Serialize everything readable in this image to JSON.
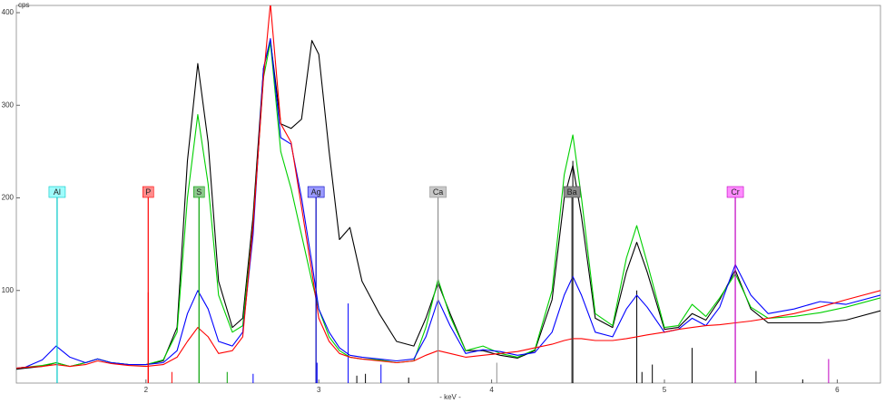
{
  "chart_data": {
    "type": "line",
    "y_label": "cps",
    "x_label": "- keV -",
    "xlim": [
      1.25,
      6.25
    ],
    "ylim": [
      0,
      400
    ],
    "xticks": [
      2,
      3,
      4,
      5,
      6
    ],
    "yticks": [
      100,
      200,
      300,
      400
    ],
    "x": [
      1.25,
      1.3,
      1.4,
      1.48,
      1.56,
      1.65,
      1.72,
      1.8,
      1.9,
      2.0,
      2.1,
      2.18,
      2.24,
      2.3,
      2.36,
      2.42,
      2.5,
      2.56,
      2.62,
      2.68,
      2.72,
      2.78,
      2.84,
      2.9,
      2.96,
      3.0,
      3.06,
      3.12,
      3.18,
      3.25,
      3.35,
      3.45,
      3.55,
      3.62,
      3.69,
      3.76,
      3.85,
      3.95,
      4.05,
      4.15,
      4.25,
      4.35,
      4.42,
      4.47,
      4.52,
      4.6,
      4.7,
      4.78,
      4.84,
      4.9,
      5.0,
      5.08,
      5.16,
      5.24,
      5.32,
      5.41,
      5.5,
      5.6,
      5.75,
      5.9,
      6.05,
      6.25
    ],
    "series": [
      {
        "color": "#000000",
        "values": [
          15,
          16,
          18,
          22,
          18,
          22,
          26,
          22,
          20,
          20,
          24,
          60,
          240,
          345,
          260,
          110,
          60,
          70,
          180,
          340,
          370,
          280,
          275,
          285,
          370,
          355,
          250,
          155,
          168,
          110,
          75,
          45,
          40,
          70,
          108,
          75,
          35,
          35,
          30,
          27,
          35,
          90,
          200,
          235,
          180,
          70,
          60,
          120,
          152,
          120,
          58,
          60,
          75,
          68,
          90,
          122,
          80,
          65,
          65,
          65,
          68,
          78
        ]
      },
      {
        "color": "#00d000",
        "values": [
          16,
          17,
          19,
          22,
          18,
          22,
          26,
          22,
          20,
          20,
          25,
          55,
          200,
          290,
          215,
          95,
          55,
          62,
          170,
          330,
          368,
          250,
          210,
          160,
          110,
          80,
          50,
          35,
          28,
          26,
          25,
          22,
          24,
          60,
          112,
          72,
          35,
          40,
          32,
          28,
          36,
          100,
          225,
          268,
          200,
          75,
          62,
          135,
          170,
          130,
          60,
          62,
          85,
          72,
          92,
          118,
          82,
          70,
          72,
          76,
          82,
          92
        ]
      },
      {
        "color": "#0000ff",
        "values": [
          16,
          17,
          25,
          40,
          28,
          22,
          26,
          22,
          20,
          20,
          22,
          35,
          75,
          100,
          80,
          45,
          40,
          55,
          160,
          340,
          372,
          265,
          258,
          200,
          130,
          80,
          55,
          38,
          30,
          28,
          26,
          24,
          26,
          50,
          90,
          62,
          32,
          36,
          34,
          30,
          33,
          55,
          95,
          115,
          95,
          55,
          50,
          80,
          95,
          82,
          55,
          58,
          70,
          62,
          82,
          128,
          95,
          75,
          80,
          88,
          85,
          95
        ]
      },
      {
        "color": "#ff0000",
        "values": [
          16,
          17,
          18,
          20,
          18,
          20,
          24,
          21,
          19,
          18,
          20,
          28,
          45,
          60,
          50,
          32,
          35,
          50,
          170,
          330,
          410,
          280,
          260,
          190,
          120,
          70,
          45,
          32,
          28,
          26,
          24,
          22,
          24,
          30,
          35,
          32,
          28,
          30,
          32,
          34,
          38,
          42,
          46,
          48,
          48,
          46,
          46,
          48,
          50,
          52,
          55,
          58,
          60,
          62,
          63,
          65,
          67,
          70,
          75,
          82,
          90,
          100
        ]
      }
    ],
    "element_lines": [
      {
        "label": "Al",
        "x": 1.486,
        "color": "#00c8c8",
        "box": "#9ffcfc"
      },
      {
        "label": "P",
        "x": 2.013,
        "color": "#ff0000",
        "box": "#ff8c8c"
      },
      {
        "label": "S",
        "x": 2.307,
        "color": "#00a000",
        "box": "#8cc88c"
      },
      {
        "label": "Ag",
        "x": 2.984,
        "color": "#0000c0",
        "box": "#9a9aff"
      },
      {
        "label": "Ca",
        "x": 3.69,
        "color": "#909090",
        "box": "#c8c8c8"
      },
      {
        "label": "Ba",
        "x": 4.465,
        "color": "#404040",
        "box": "#8c8c8c"
      },
      {
        "label": "Cr",
        "x": 5.41,
        "color": "#c000c0",
        "box": "#ff8cff"
      }
    ],
    "sticks": [
      {
        "x": 2.013,
        "height": 98,
        "color": "#ff0000"
      },
      {
        "x": 2.15,
        "height": 12,
        "color": "#ff0000"
      },
      {
        "x": 2.47,
        "height": 12,
        "color": "#00a000"
      },
      {
        "x": 2.62,
        "height": 10,
        "color": "#0000ff"
      },
      {
        "x": 2.99,
        "height": 22,
        "color": "#0000ff"
      },
      {
        "x": 3.17,
        "height": 86,
        "color": "#0000ff"
      },
      {
        "x": 3.22,
        "height": 8,
        "color": "#000000"
      },
      {
        "x": 3.27,
        "height": 10,
        "color": "#000000"
      },
      {
        "x": 3.36,
        "height": 20,
        "color": "#0000ff"
      },
      {
        "x": 3.52,
        "height": 6,
        "color": "#000000"
      },
      {
        "x": 4.03,
        "height": 22,
        "color": "#909090"
      },
      {
        "x": 4.47,
        "height": 240,
        "color": "#000000"
      },
      {
        "x": 4.84,
        "height": 100,
        "color": "#000000"
      },
      {
        "x": 4.87,
        "height": 12,
        "color": "#000000"
      },
      {
        "x": 4.93,
        "height": 20,
        "color": "#000000"
      },
      {
        "x": 5.16,
        "height": 38,
        "color": "#000000"
      },
      {
        "x": 5.53,
        "height": 13,
        "color": "#000000"
      },
      {
        "x": 5.8,
        "height": 4,
        "color": "#000000"
      },
      {
        "x": 5.95,
        "height": 26,
        "color": "#c000c0"
      }
    ]
  }
}
